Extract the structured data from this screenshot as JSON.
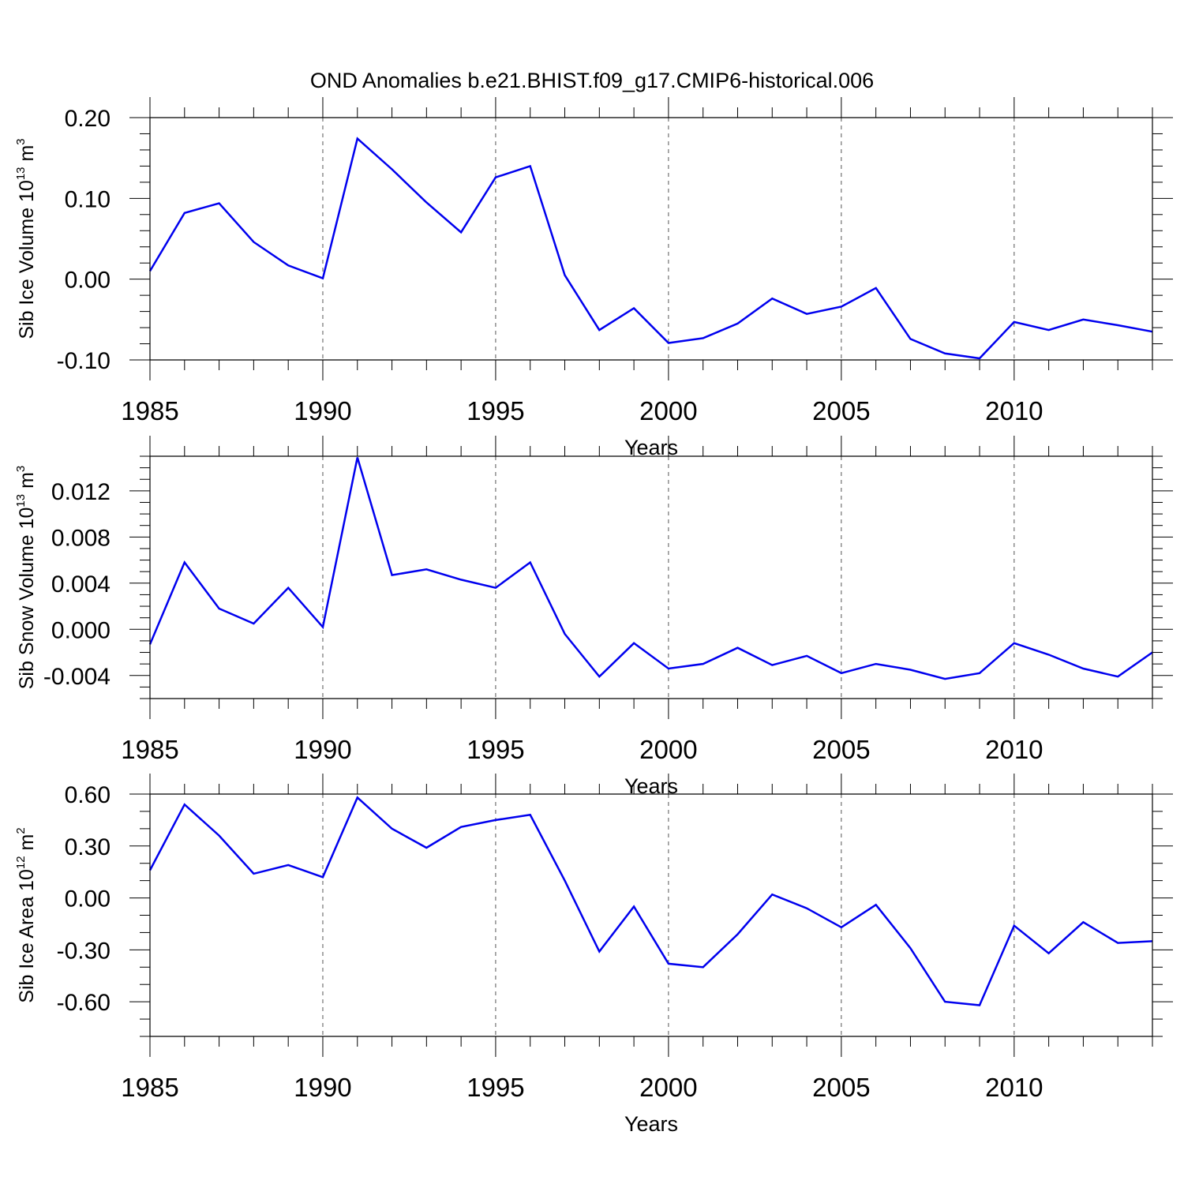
{
  "title": "OND Anomalies b.e21.BHIST.f09_g17.CMIP6-historical.006",
  "colors": {
    "line": "#0000ee",
    "axis": "#000000",
    "grid": "#555555"
  },
  "chart_data": [
    {
      "type": "line",
      "ylabel_prefix": "Sib Ice Volume 10",
      "ylabel_exponent": "13",
      "ylabel_unit": " m",
      "ylabel_unit_exponent": "3",
      "xlabel": "Years",
      "xlim": [
        1985,
        2014
      ],
      "ylim": [
        -0.1,
        0.2
      ],
      "y_ticks": [
        -0.1,
        0.0,
        0.1,
        0.2
      ],
      "y_tick_labels": [
        "-0.10",
        "0.00",
        "0.10",
        "0.20"
      ],
      "y_minor_step": 0.02,
      "x_ticks": [
        1985,
        1990,
        1995,
        2000,
        2005,
        2010
      ],
      "x_tick_labels": [
        "1985",
        "1990",
        "1995",
        "2000",
        "2005",
        "2010"
      ],
      "x": [
        1985,
        1986,
        1987,
        1988,
        1989,
        1990,
        1991,
        1992,
        1993,
        1994,
        1995,
        1996,
        1997,
        1998,
        1999,
        2000,
        2001,
        2002,
        2003,
        2004,
        2005,
        2006,
        2007,
        2008,
        2009,
        2010,
        2011,
        2012,
        2013,
        2014
      ],
      "y": [
        0.01,
        0.082,
        0.094,
        0.046,
        0.017,
        0.001,
        0.174,
        0.136,
        0.095,
        0.058,
        0.126,
        0.14,
        0.005,
        -0.063,
        -0.036,
        -0.079,
        -0.073,
        -0.055,
        -0.024,
        -0.043,
        -0.034,
        -0.011,
        -0.074,
        -0.092,
        -0.098,
        -0.053,
        -0.063,
        -0.05,
        -0.057,
        -0.065
      ]
    },
    {
      "type": "line",
      "ylabel_prefix": "Sib Snow Volume 10",
      "ylabel_exponent": "13",
      "ylabel_unit": " m",
      "ylabel_unit_exponent": "3",
      "xlabel": "Years",
      "xlim": [
        1985,
        2014
      ],
      "ylim": [
        -0.006,
        0.015
      ],
      "y_ticks": [
        -0.004,
        0.0,
        0.004,
        0.008,
        0.012
      ],
      "y_tick_labels": [
        "-0.004",
        "0.000",
        "0.004",
        "0.008",
        "0.012"
      ],
      "y_minor_step": 0.001,
      "x_ticks": [
        1985,
        1990,
        1995,
        2000,
        2005,
        2010
      ],
      "x_tick_labels": [
        "1985",
        "1990",
        "1995",
        "2000",
        "2005",
        "2010"
      ],
      "x": [
        1985,
        1986,
        1987,
        1988,
        1989,
        1990,
        1991,
        1992,
        1993,
        1994,
        1995,
        1996,
        1997,
        1998,
        1999,
        2000,
        2001,
        2002,
        2003,
        2004,
        2005,
        2006,
        2007,
        2008,
        2009,
        2010,
        2011,
        2012,
        2013,
        2014
      ],
      "y": [
        -0.0013,
        0.0058,
        0.0018,
        0.0005,
        0.0036,
        0.0002,
        0.0149,
        0.0047,
        0.0052,
        0.0043,
        0.0036,
        0.0058,
        -0.0004,
        -0.0041,
        -0.0012,
        -0.0034,
        -0.003,
        -0.0016,
        -0.0031,
        -0.0023,
        -0.0038,
        -0.003,
        -0.0035,
        -0.0043,
        -0.0038,
        -0.0012,
        -0.0022,
        -0.0034,
        -0.0041,
        -0.002
      ]
    },
    {
      "type": "line",
      "ylabel_prefix": "Sib Ice Area 10",
      "ylabel_exponent": "12",
      "ylabel_unit": " m",
      "ylabel_unit_exponent": "2",
      "xlabel": "Years",
      "xlim": [
        1985,
        2014
      ],
      "ylim": [
        -0.8,
        0.6
      ],
      "y_ticks": [
        -0.6,
        -0.3,
        0.0,
        0.3,
        0.6
      ],
      "y_tick_labels": [
        "-0.60",
        "-0.30",
        "0.00",
        "0.30",
        "0.60"
      ],
      "y_minor_step": 0.1,
      "x_ticks": [
        1985,
        1990,
        1995,
        2000,
        2005,
        2010
      ],
      "x_tick_labels": [
        "1985",
        "1990",
        "1995",
        "2000",
        "2005",
        "2010"
      ],
      "x": [
        1985,
        1986,
        1987,
        1988,
        1989,
        1990,
        1991,
        1992,
        1993,
        1994,
        1995,
        1996,
        1997,
        1998,
        1999,
        2000,
        2001,
        2002,
        2003,
        2004,
        2005,
        2006,
        2007,
        2008,
        2009,
        2010,
        2011,
        2012,
        2013,
        2014
      ],
      "y": [
        0.16,
        0.54,
        0.36,
        0.14,
        0.19,
        0.12,
        0.58,
        0.4,
        0.29,
        0.41,
        0.45,
        0.48,
        0.1,
        -0.31,
        -0.05,
        -0.38,
        -0.4,
        -0.21,
        0.02,
        -0.06,
        -0.17,
        -0.04,
        -0.29,
        -0.6,
        -0.62,
        -0.16,
        -0.32,
        -0.14,
        -0.26,
        -0.25
      ]
    }
  ]
}
